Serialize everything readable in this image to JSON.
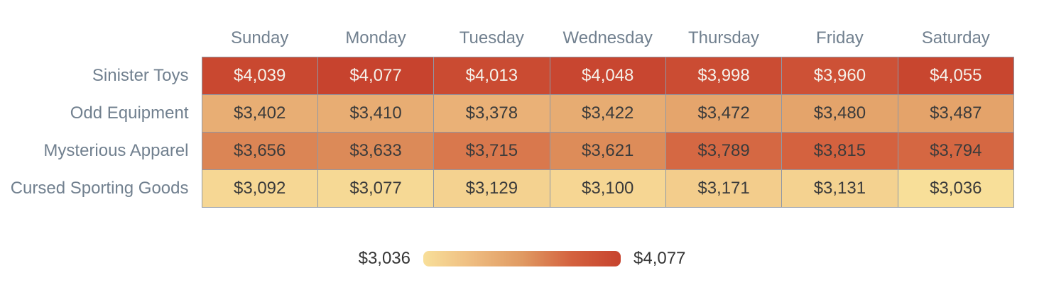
{
  "chart_data": {
    "type": "heatmap",
    "x": [
      "Sunday",
      "Monday",
      "Tuesday",
      "Wednesday",
      "Thursday",
      "Friday",
      "Saturday"
    ],
    "y": [
      "Sinister Toys",
      "Odd Equipment",
      "Mysterious Apparel",
      "Cursed Sporting Goods"
    ],
    "z": [
      [
        4039,
        4077,
        4013,
        4048,
        3998,
        3960,
        4055
      ],
      [
        3402,
        3410,
        3378,
        3422,
        3472,
        3480,
        3487
      ],
      [
        3656,
        3633,
        3715,
        3621,
        3789,
        3815,
        3794
      ],
      [
        3092,
        3077,
        3129,
        3100,
        3171,
        3131,
        3036
      ]
    ],
    "zmin": 3036,
    "zmax": 4077,
    "value_prefix": "$",
    "colorscale": [
      "#f8df99",
      "#eebc80",
      "#e09a62",
      "#d4623f",
      "#c7432e"
    ],
    "light_text_threshold": 0.8,
    "cell_dark_text_color": "#3b3b3b",
    "cell_light_text_color": "#f5f1ea",
    "grid_on": true,
    "legend_position": "bottom-center"
  },
  "legend": {
    "min_label": "$3,036",
    "max_label": "$4,077"
  },
  "styles": {
    "axis_label_color": "#71808f",
    "cell_border_color": "#8f98a5",
    "background_color": "#ffffff",
    "legend_text_color": "#363636"
  }
}
